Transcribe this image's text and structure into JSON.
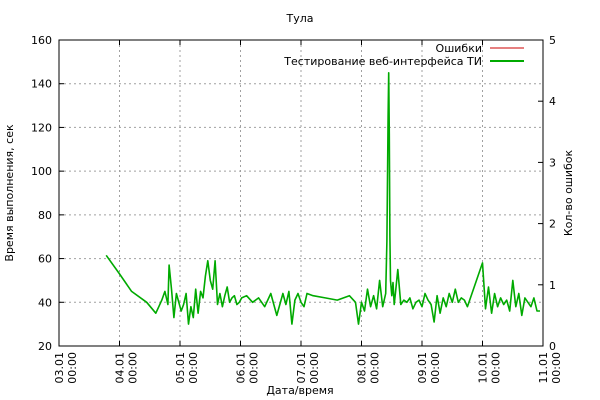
{
  "chart_data": {
    "type": "line",
    "title": "Тула",
    "xlabel": "Дата/время",
    "ylabel": "Время выполнения, сек",
    "y2label": "Кол-во ошибок",
    "xlim": [
      "03.01 00:00",
      "11.01 00:00"
    ],
    "x_ticks": [
      {
        "value": 0,
        "line1": "03.01",
        "line2": "00:00"
      },
      {
        "value": 1,
        "line1": "04.01",
        "line2": "00:00"
      },
      {
        "value": 2,
        "line1": "05.01",
        "line2": "00:00"
      },
      {
        "value": 3,
        "line1": "06.01",
        "line2": "00:00"
      },
      {
        "value": 4,
        "line1": "07.01",
        "line2": "00:00"
      },
      {
        "value": 5,
        "line1": "08.01",
        "line2": "00:00"
      },
      {
        "value": 6,
        "line1": "09.01",
        "line2": "00:00"
      },
      {
        "value": 7,
        "line1": "10.01",
        "line2": "00:00"
      },
      {
        "value": 8,
        "line1": "11.01",
        "line2": "00:00"
      }
    ],
    "ylim": [
      20,
      160
    ],
    "y_ticks": [
      "20",
      "40",
      "60",
      "80",
      "100",
      "120",
      "140",
      "160"
    ],
    "y2lim": [
      0,
      5
    ],
    "y2_ticks": [
      "0",
      "1",
      "2",
      "3",
      "4",
      "5"
    ],
    "grid": true,
    "legend_position": "top-right",
    "series": [
      {
        "name": "Ошибки",
        "axis": "y2",
        "color": "#cc0000",
        "x": [],
        "values": []
      },
      {
        "name": "Тестирование веб-интерфейса ТИ",
        "axis": "y",
        "color": "#00aa00",
        "x": [
          0.78,
          1.0,
          1.2,
          1.45,
          1.6,
          1.65,
          1.7,
          1.75,
          1.8,
          1.82,
          1.86,
          1.9,
          1.94,
          1.98,
          2.02,
          2.06,
          2.1,
          2.14,
          2.18,
          2.22,
          2.26,
          2.3,
          2.34,
          2.38,
          2.42,
          2.46,
          2.5,
          2.54,
          2.58,
          2.62,
          2.66,
          2.7,
          2.74,
          2.78,
          2.82,
          2.86,
          2.9,
          2.94,
          2.98,
          3.02,
          3.1,
          3.2,
          3.3,
          3.4,
          3.5,
          3.6,
          3.7,
          3.75,
          3.8,
          3.85,
          3.9,
          3.95,
          4.0,
          4.05,
          4.1,
          4.2,
          4.4,
          4.6,
          4.8,
          4.9,
          4.95,
          5.0,
          5.05,
          5.1,
          5.15,
          5.2,
          5.25,
          5.3,
          5.35,
          5.4,
          5.42,
          5.44,
          5.45,
          5.46,
          5.47,
          5.48,
          5.5,
          5.52,
          5.54,
          5.56,
          5.6,
          5.65,
          5.7,
          5.75,
          5.8,
          5.85,
          5.9,
          5.95,
          6.0,
          6.05,
          6.1,
          6.15,
          6.2,
          6.25,
          6.3,
          6.35,
          6.4,
          6.45,
          6.5,
          6.55,
          6.6,
          6.65,
          6.7,
          6.75,
          7.0,
          7.05,
          7.1,
          7.15,
          7.2,
          7.25,
          7.3,
          7.35,
          7.4,
          7.45,
          7.5,
          7.55,
          7.6,
          7.65,
          7.7,
          7.75,
          7.8,
          7.85,
          7.9,
          7.95
        ],
        "values": [
          61.5,
          53,
          45,
          40,
          35,
          38,
          41,
          45,
          39,
          57,
          46,
          33,
          44,
          40,
          36,
          39,
          44,
          30,
          38,
          33,
          46,
          35,
          45,
          42,
          52,
          59,
          50,
          46,
          59,
          39,
          44,
          38,
          43,
          47,
          40,
          42,
          43,
          39,
          40,
          42,
          43,
          40,
          42,
          38,
          44,
          34,
          44,
          39,
          45,
          30,
          41,
          44,
          40,
          38,
          44,
          43,
          42,
          41,
          43,
          40,
          30,
          40,
          36,
          46,
          38,
          43,
          37,
          50,
          38,
          44,
          68,
          125,
          145,
          117,
          70,
          50,
          43,
          49,
          39,
          44,
          55,
          39,
          41,
          40,
          42,
          37,
          40,
          41,
          38,
          44,
          41,
          39,
          31,
          43,
          35,
          42,
          38,
          44,
          40,
          46,
          40,
          42,
          41,
          38,
          58,
          37,
          47,
          35,
          44,
          38,
          42,
          39,
          41,
          36,
          50,
          38,
          44,
          34,
          42,
          40,
          38,
          42,
          36,
          36
        ]
      }
    ]
  }
}
